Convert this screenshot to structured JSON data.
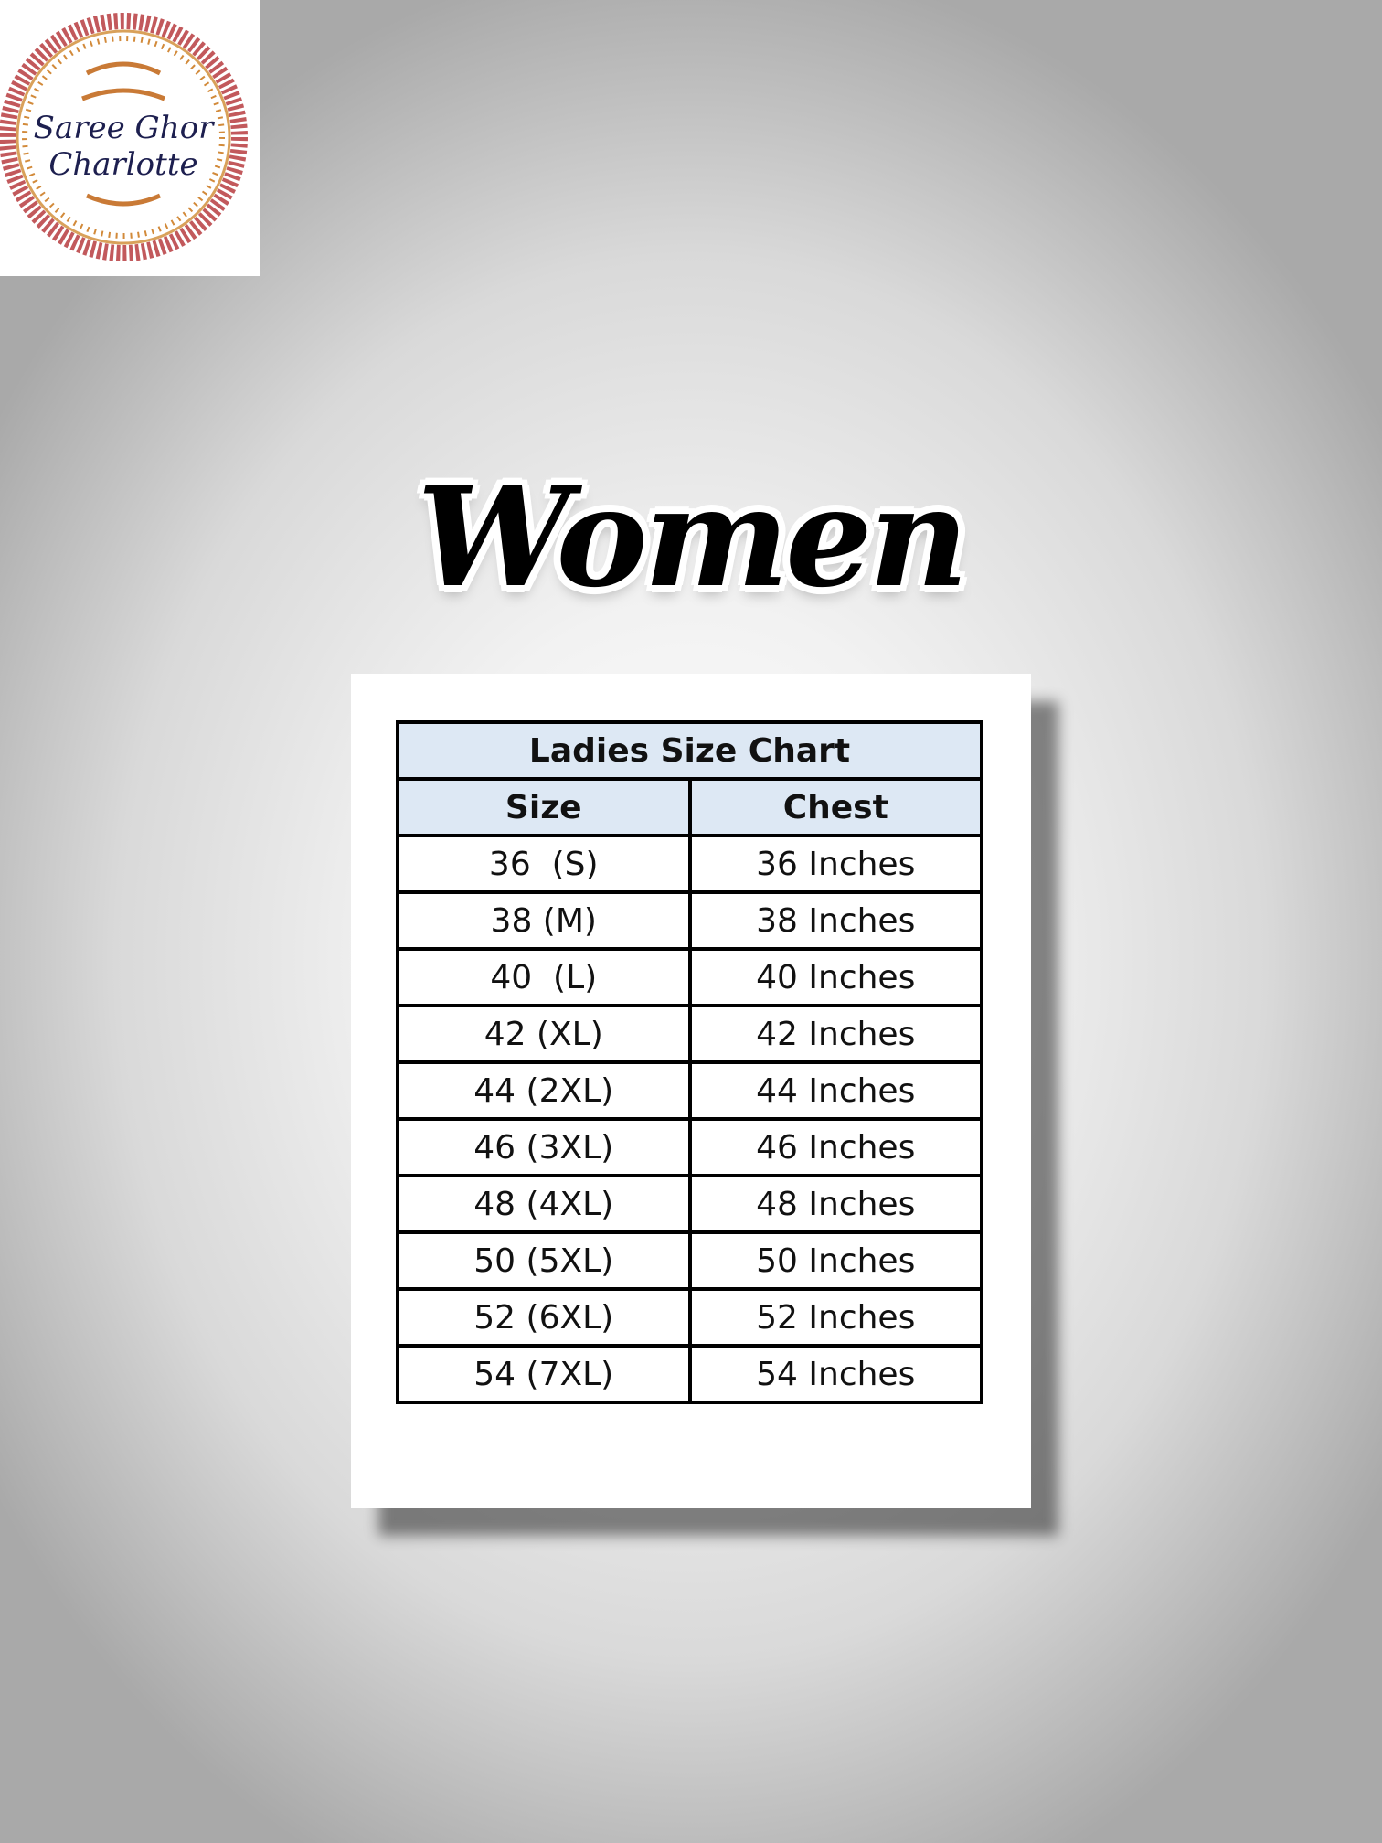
{
  "logo": {
    "line1": "Saree Ghor",
    "line2": "Charlotte",
    "colors": {
      "border": "#b5464b",
      "accent": "#d28a3a",
      "text": "#1d1f4f"
    }
  },
  "heading": "Women",
  "size_chart": {
    "title": "Ladies Size Chart",
    "columns": [
      "Size",
      "Chest"
    ],
    "header_color": "#dde8f4",
    "rows": [
      [
        "36  (S)",
        "36 Inches"
      ],
      [
        "38 (M)",
        "38 Inches"
      ],
      [
        "40  (L)",
        "40 Inches"
      ],
      [
        "42 (XL)",
        "42 Inches"
      ],
      [
        "44 (2XL)",
        "44 Inches"
      ],
      [
        "46 (3XL)",
        "46 Inches"
      ],
      [
        "48 (4XL)",
        "48 Inches"
      ],
      [
        "50 (5XL)",
        "50 Inches"
      ],
      [
        "52 (6XL)",
        "52 Inches"
      ],
      [
        "54 (7XL)",
        "54 Inches"
      ]
    ]
  }
}
